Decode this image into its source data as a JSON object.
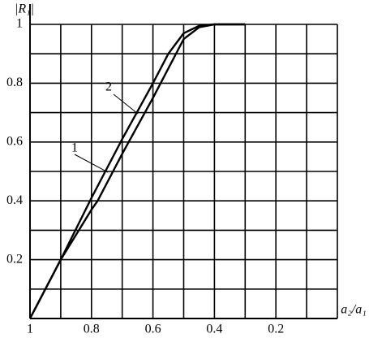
{
  "chart_data": {
    "type": "line",
    "ylabel": "|R₁|",
    "xlabel": "a₂/a₁",
    "xlim": [
      1,
      0
    ],
    "ylim": [
      0,
      1
    ],
    "xticks": [
      1,
      0.8,
      0.6,
      0.4,
      0.2
    ],
    "yticks": [
      0.2,
      0.4,
      0.6,
      0.8,
      1
    ],
    "xminorticks": [
      0.9,
      0.7,
      0.5,
      0.3,
      0.1,
      0
    ],
    "yminorticks": [
      0.1,
      0.3,
      0.5,
      0.7,
      0.9
    ],
    "grid": true,
    "series": [
      {
        "name": "1",
        "color": "#000000",
        "x": [
          1,
          0.9,
          0.8,
          0.78,
          0.7,
          0.6,
          0.5,
          0.45,
          0.4,
          0.3
        ],
        "values": [
          0,
          0.2,
          0.37,
          0.4,
          0.56,
          0.75,
          0.95,
          0.99,
          1,
          1
        ]
      },
      {
        "name": "2",
        "color": "#000000",
        "x": [
          1,
          0.9,
          0.8,
          0.7,
          0.6,
          0.55,
          0.5,
          0.45,
          0.4,
          0.3
        ],
        "values": [
          0,
          0.2,
          0.41,
          0.61,
          0.8,
          0.9,
          0.97,
          0.995,
          1,
          1
        ]
      }
    ]
  }
}
